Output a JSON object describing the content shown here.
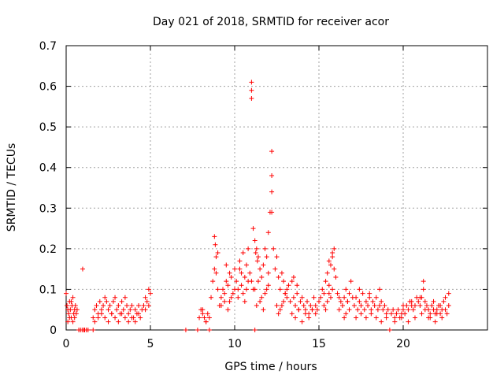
{
  "chart_data": {
    "type": "scatter",
    "title": "Day 021 of 2018, SRMTID for receiver acor",
    "xlabel": "GPS time / hours",
    "ylabel": "SRMTID / TECUs",
    "xlim": [
      0,
      25
    ],
    "ylim": [
      0,
      0.7
    ],
    "xticks": [
      0,
      5,
      10,
      15,
      20
    ],
    "xtick_labels": [
      "0",
      "5",
      "10",
      "15",
      "20"
    ],
    "yticks": [
      0,
      0.1,
      0.2,
      0.3,
      0.4,
      0.5,
      0.6,
      0.7
    ],
    "ytick_labels": [
      "0",
      "0.1",
      "0.2",
      "0.3",
      "0.4",
      "0.5",
      "0.6",
      "0.7"
    ],
    "grid": true,
    "marker": "+",
    "color": "#ff0000",
    "series": [
      {
        "name": "SRMTID",
        "x": [
          0.0,
          0.05,
          0.1,
          0.15,
          0.2,
          0.25,
          0.3,
          0.35,
          0.4,
          0.45,
          0.5,
          0.55,
          0.6,
          0.65,
          0.1,
          0.2,
          0.3,
          0.4,
          0.5,
          0.75,
          0.85,
          0.95,
          1.05,
          1.1,
          1.2,
          1.3,
          1.6,
          0.98,
          1.6,
          1.7,
          1.8,
          1.9,
          2.0,
          2.1,
          2.2,
          2.3,
          2.4,
          2.5,
          2.6,
          2.7,
          2.8,
          2.9,
          3.0,
          3.1,
          3.2,
          3.3,
          3.4,
          3.5,
          3.6,
          3.7,
          3.8,
          3.9,
          4.0,
          4.1,
          4.2,
          4.3,
          4.4,
          4.5,
          1.7,
          1.9,
          2.1,
          2.3,
          2.5,
          2.7,
          2.9,
          3.1,
          3.3,
          3.5,
          3.7,
          3.9,
          4.1,
          4.3,
          4.6,
          4.7,
          4.8,
          4.9,
          5.0,
          4.7,
          4.9,
          7.1,
          7.8,
          8.5,
          7.9,
          8.0,
          8.1,
          8.2,
          8.3,
          8.4,
          8.5,
          8.1,
          8.3,
          8.6,
          8.7,
          8.8,
          8.9,
          9.0,
          8.8,
          9.0,
          8.85,
          8.9,
          9.1,
          9.2,
          9.3,
          9.4,
          9.5,
          9.6,
          9.7,
          9.8,
          9.9,
          10.0,
          9.2,
          9.4,
          9.6,
          9.8,
          10.0,
          9.5,
          9.7,
          10.1,
          10.2,
          10.3,
          10.4,
          10.5,
          10.6,
          10.7,
          10.8,
          10.2,
          10.4,
          10.6,
          10.8,
          10.3,
          10.5,
          10.7,
          10.9,
          11.0,
          11.1,
          11.0,
          11.0,
          11.0,
          11.1,
          11.2,
          11.3,
          11.4,
          11.5,
          11.6,
          11.7,
          11.8,
          11.9,
          12.0,
          11.2,
          11.4,
          11.6,
          11.8,
          12.0,
          11.3,
          11.5,
          11.7,
          11.9,
          11.2,
          11.25,
          11.35,
          12.0,
          12.1,
          12.2,
          12.2,
          12.2,
          12.2,
          12.3,
          12.4,
          12.5,
          12.6,
          12.7,
          12.8,
          12.9,
          13.0,
          13.1,
          13.2,
          12.5,
          12.7,
          12.9,
          13.1,
          12.6,
          12.8,
          13.0,
          13.3,
          13.4,
          13.5,
          13.6,
          13.7,
          13.8,
          13.9,
          14.0,
          14.1,
          14.2,
          14.3,
          14.4,
          14.5,
          14.6,
          14.7,
          14.8,
          14.9,
          15.0,
          13.4,
          13.6,
          13.8,
          14.0,
          14.2,
          14.4,
          14.6,
          14.8,
          13.5,
          13.7,
          15.1,
          15.2,
          15.3,
          15.4,
          15.5,
          15.6,
          15.7,
          15.8,
          15.9,
          16.0,
          15.3,
          15.5,
          15.7,
          15.9,
          15.4,
          15.6,
          15.8,
          15.6,
          15.8,
          16.1,
          16.2,
          16.3,
          16.4,
          16.5,
          16.6,
          16.7,
          16.8,
          16.9,
          17.0,
          16.2,
          16.4,
          16.6,
          16.8,
          16.5,
          16.7,
          17.1,
          17.2,
          17.3,
          17.4,
          17.5,
          17.6,
          17.7,
          17.8,
          17.9,
          18.0,
          18.1,
          18.2,
          18.3,
          18.4,
          18.5,
          18.6,
          18.7,
          18.8,
          18.9,
          19.0,
          19.1,
          17.2,
          17.5,
          17.8,
          18.1,
          18.4,
          18.7,
          19.0,
          17.4,
          18.0,
          18.6,
          19.2,
          19.3,
          19.4,
          19.5,
          19.6,
          19.7,
          19.8,
          19.9,
          20.0,
          20.1,
          20.2,
          20.3,
          20.4,
          20.5,
          20.6,
          20.7,
          20.8,
          20.9,
          21.0,
          21.1,
          21.2,
          21.3,
          21.4,
          21.5,
          21.6,
          21.7,
          21.8,
          21.9,
          22.0,
          22.1,
          22.2,
          22.3,
          22.4,
          22.5,
          22.6,
          22.7,
          19.5,
          19.9,
          20.3,
          20.7,
          21.1,
          21.5,
          21.9,
          22.3,
          22.7,
          20.0,
          20.5,
          21.0,
          21.3,
          21.8,
          22.2,
          22.5,
          21.2,
          21.6,
          22.0
        ],
        "y": [
          0.09,
          0.06,
          0.05,
          0.04,
          0.07,
          0.05,
          0.03,
          0.06,
          0.08,
          0.04,
          0.05,
          0.06,
          0.04,
          0.05,
          0.02,
          0.03,
          0.07,
          0.02,
          0.03,
          0.0,
          0.0,
          0.0,
          0.0,
          0.0,
          0.0,
          0.0,
          0.0,
          0.15,
          0.03,
          0.05,
          0.06,
          0.04,
          0.07,
          0.05,
          0.06,
          0.08,
          0.07,
          0.05,
          0.06,
          0.04,
          0.07,
          0.08,
          0.05,
          0.06,
          0.04,
          0.07,
          0.05,
          0.08,
          0.06,
          0.04,
          0.05,
          0.06,
          0.03,
          0.05,
          0.04,
          0.06,
          0.03,
          0.05,
          0.02,
          0.03,
          0.04,
          0.03,
          0.02,
          0.04,
          0.03,
          0.02,
          0.04,
          0.03,
          0.02,
          0.03,
          0.02,
          0.04,
          0.06,
          0.08,
          0.07,
          0.1,
          0.09,
          0.05,
          0.06,
          0.0,
          0.0,
          0.0,
          0.03,
          0.05,
          0.04,
          0.03,
          0.02,
          0.04,
          0.03,
          0.05,
          0.02,
          0.08,
          0.12,
          0.15,
          0.18,
          0.1,
          0.23,
          0.19,
          0.21,
          0.14,
          0.06,
          0.08,
          0.1,
          0.09,
          0.12,
          0.11,
          0.14,
          0.13,
          0.09,
          0.15,
          0.06,
          0.07,
          0.05,
          0.08,
          0.1,
          0.16,
          0.07,
          0.12,
          0.1,
          0.17,
          0.14,
          0.19,
          0.13,
          0.16,
          0.2,
          0.08,
          0.11,
          0.07,
          0.12,
          0.15,
          0.09,
          0.1,
          0.14,
          0.12,
          0.1,
          0.61,
          0.59,
          0.57,
          0.25,
          0.22,
          0.2,
          0.18,
          0.15,
          0.13,
          0.16,
          0.2,
          0.18,
          0.14,
          0.1,
          0.12,
          0.08,
          0.09,
          0.11,
          0.06,
          0.07,
          0.05,
          0.1,
          0.0,
          0.19,
          0.17,
          0.24,
          0.29,
          0.29,
          0.44,
          0.38,
          0.34,
          0.2,
          0.15,
          0.18,
          0.13,
          0.1,
          0.14,
          0.12,
          0.09,
          0.08,
          0.11,
          0.06,
          0.05,
          0.07,
          0.1,
          0.04,
          0.06,
          0.09,
          0.07,
          0.12,
          0.08,
          0.06,
          0.09,
          0.05,
          0.07,
          0.08,
          0.06,
          0.05,
          0.07,
          0.04,
          0.06,
          0.05,
          0.08,
          0.06,
          0.05,
          0.07,
          0.04,
          0.03,
          0.05,
          0.02,
          0.04,
          0.03,
          0.05,
          0.04,
          0.13,
          0.11,
          0.08,
          0.1,
          0.09,
          0.12,
          0.14,
          0.11,
          0.16,
          0.18,
          0.15,
          0.13,
          0.06,
          0.07,
          0.08,
          0.2,
          0.05,
          0.09,
          0.1,
          0.17,
          0.19,
          0.09,
          0.08,
          0.07,
          0.06,
          0.08,
          0.1,
          0.07,
          0.09,
          0.12,
          0.08,
          0.05,
          0.06,
          0.04,
          0.05,
          0.03,
          0.07,
          0.06,
          0.08,
          0.05,
          0.07,
          0.06,
          0.09,
          0.05,
          0.07,
          0.06,
          0.08,
          0.05,
          0.07,
          0.06,
          0.08,
          0.05,
          0.06,
          0.07,
          0.05,
          0.06,
          0.04,
          0.05,
          0.03,
          0.04,
          0.03,
          0.04,
          0.03,
          0.02,
          0.03,
          0.1,
          0.09,
          0.1,
          0.0,
          0.04,
          0.05,
          0.03,
          0.04,
          0.05,
          0.03,
          0.04,
          0.05,
          0.04,
          0.06,
          0.05,
          0.07,
          0.06,
          0.05,
          0.06,
          0.08,
          0.07,
          0.06,
          0.08,
          0.12,
          0.07,
          0.06,
          0.05,
          0.04,
          0.06,
          0.05,
          0.04,
          0.05,
          0.06,
          0.04,
          0.05,
          0.07,
          0.05,
          0.04,
          0.06,
          0.02,
          0.03,
          0.02,
          0.03,
          0.04,
          0.03,
          0.02,
          0.03,
          0.09,
          0.06,
          0.07,
          0.08,
          0.05,
          0.07,
          0.06,
          0.08,
          0.1,
          0.03,
          0.04
        ]
      }
    ]
  }
}
